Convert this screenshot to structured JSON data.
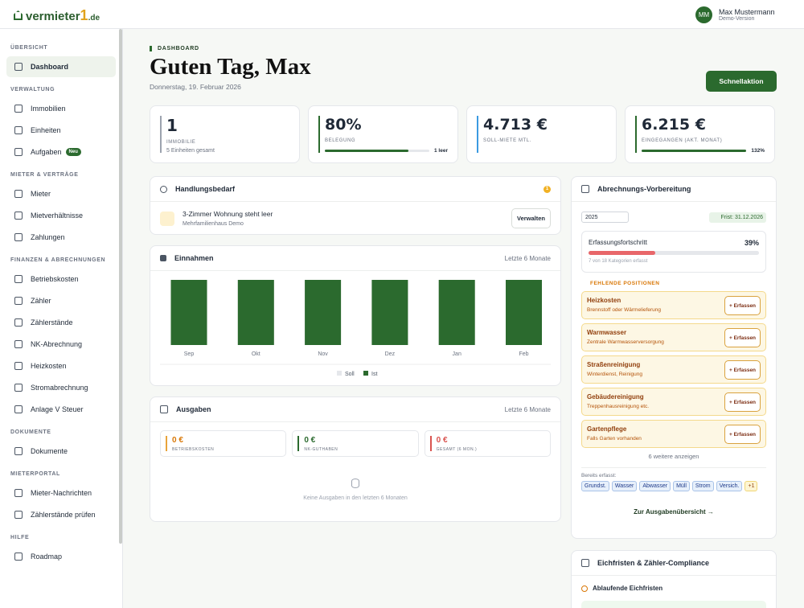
{
  "header": {
    "logo": "vermieter",
    "logo_digit": "1",
    "logo_tld": ".de",
    "avatar": "MM",
    "user_name": "Max Mustermann",
    "user_role": "Demo-Version"
  },
  "sidebar": {
    "sections": [
      {
        "title": "ÜBERSICHT",
        "items": [
          {
            "label": "Dashboard"
          }
        ]
      },
      {
        "title": "VERWALTUNG",
        "items": [
          {
            "label": "Immobilien"
          },
          {
            "label": "Einheiten"
          },
          {
            "label": "Aufgaben",
            "badge": "Neu"
          }
        ]
      },
      {
        "title": "MIETER & VERTRÄGE",
        "items": [
          {
            "label": "Mieter"
          },
          {
            "label": "Mietverhältnisse"
          },
          {
            "label": "Zahlungen"
          }
        ]
      },
      {
        "title": "FINANZEN & ABRECHNUNGEN",
        "items": [
          {
            "label": "Betriebskosten"
          },
          {
            "label": "Zähler"
          },
          {
            "label": "Zählerstände"
          },
          {
            "label": "NK-Abrechnung"
          },
          {
            "label": "Heizkosten"
          },
          {
            "label": "Stromabrechnung"
          },
          {
            "label": "Anlage V Steuer"
          }
        ]
      },
      {
        "title": "DOKUMENTE",
        "items": [
          {
            "label": "Dokumente"
          }
        ]
      },
      {
        "title": "MIETERPORTAL",
        "items": [
          {
            "label": "Mieter-Nachrichten"
          },
          {
            "label": "Zählerstände prüfen"
          }
        ]
      },
      {
        "title": "HILFE",
        "items": [
          {
            "label": "Roadmap"
          }
        ]
      }
    ]
  },
  "page": {
    "eyebrow": "DASHBOARD",
    "greeting": "Guten Tag, Max",
    "date": "Donnerstag, 19. Februar 2026",
    "quick_action": "Schnellaktion"
  },
  "kpis": [
    {
      "value": "1",
      "label": "IMMOBILIE",
      "sub": "5 Einheiten gesamt"
    },
    {
      "value": "80%",
      "label": "BELEGUNG",
      "note": "1 leer"
    },
    {
      "value": "4.713 €",
      "label": "SOLL-MIETE MTL."
    },
    {
      "value": "6.215 €",
      "label": "EINGEGANGEN (AKT. MONAT)",
      "note": "132%"
    }
  ],
  "action_needed": {
    "title": "Handlungsbedarf",
    "count": "1",
    "item_title": "3-Zimmer Wohnung steht leer",
    "item_sub": "Mehrfamilienhaus Demo",
    "button": "Verwalten"
  },
  "einnahmen": {
    "title": "Einnahmen",
    "period": "Letzte 6 Monate",
    "chart_data": {
      "type": "bar",
      "categories": [
        "Sep",
        "Okt",
        "Nov",
        "Dez",
        "Jan",
        "Feb"
      ],
      "ylim": [
        0,
        100
      ],
      "series": [
        {
          "name": "Soll",
          "color": "#e5e7eb",
          "values": [
            100,
            100,
            100,
            100,
            100,
            100
          ]
        },
        {
          "name": "Ist",
          "color": "#2b6a2e",
          "values": [
            100,
            100,
            100,
            100,
            100,
            100
          ]
        }
      ]
    }
  },
  "ausgaben": {
    "title": "Ausgaben",
    "period": "Letzte 6 Monate",
    "cards": [
      {
        "value": "0 €",
        "label": "BETRIEBSKOSTEN"
      },
      {
        "value": "0 €",
        "label": "NK-GUTHABEN"
      },
      {
        "value": "0 €",
        "label": "GESAMT (6 MON.)"
      }
    ],
    "empty": "Keine Ausgaben in den letzten 6 Monaten"
  },
  "abrechnung": {
    "title": "Abrechnungs-Vorbereitung",
    "year": "2025",
    "deadline": "Frist: 31.12.2026",
    "progress_title": "Erfassungsfortschritt",
    "progress": "39%",
    "progress_note": "7 von 18 Kategorien erfasst",
    "missing_title": "FEHLENDE POSITIONEN",
    "missing": [
      {
        "name": "Heizkosten",
        "desc": "Brennstoff oder Wärmelieferung",
        "action": "+ Erfassen"
      },
      {
        "name": "Warmwasser",
        "desc": "Zentrale Warmwasserversorgung",
        "action": "+ Erfassen"
      },
      {
        "name": "Straßenreinigung",
        "desc": "Winterdienst, Reinigung",
        "action": "+ Erfassen"
      },
      {
        "name": "Gebäudereinigung",
        "desc": "Treppenhausreinigung etc.",
        "action": "+ Erfassen"
      },
      {
        "name": "Gartenpflege",
        "desc": "Falls Garten vorhanden",
        "action": "+ Erfassen"
      }
    ],
    "more": "6 weitere anzeigen",
    "captured_title": "Bereits erfasst:",
    "captured": [
      "Grundst.",
      "Wasser",
      "Abwasser",
      "Müll",
      "Strom",
      "Versich.",
      "+1"
    ],
    "link": "Zur Ausgabenübersicht →"
  },
  "eichfristen": {
    "title": "Eichfristen & Zähler-Compliance",
    "sub_title": "Ablaufende Eichfristen"
  }
}
